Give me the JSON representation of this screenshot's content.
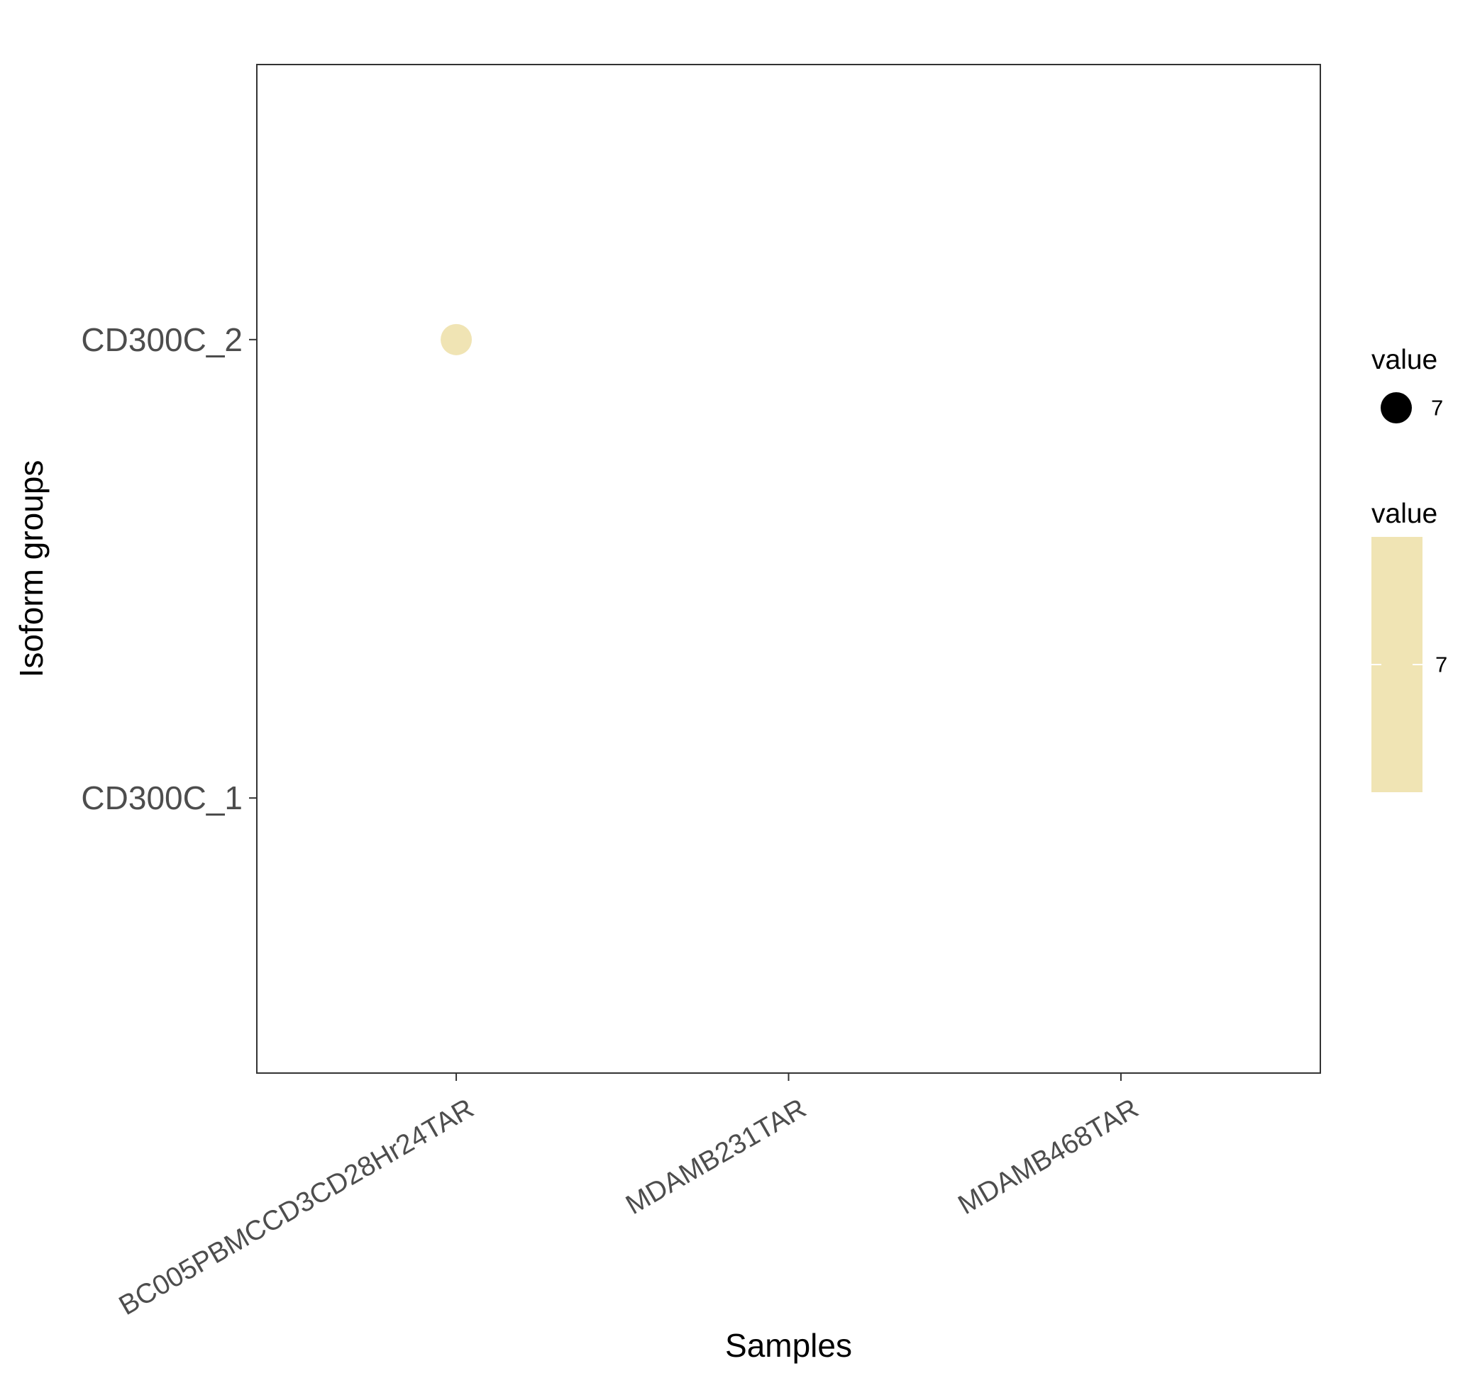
{
  "chart_data": {
    "type": "scatter",
    "title": "",
    "xlabel": "Samples",
    "ylabel": "Isoform groups",
    "x_categories": [
      "BC005PBMCCD3CD28Hr24TAR",
      "MDAMB231TAR",
      "MDAMB468TAR"
    ],
    "y_categories": [
      "CD300C_1",
      "CD300C_2"
    ],
    "points": [
      {
        "x": "BC005PBMCCD3CD28Hr24TAR",
        "y": "CD300C_2",
        "value": 7,
        "color": "#f0e4b4"
      }
    ],
    "grid": false,
    "legend_placement": "right",
    "legends": [
      {
        "kind": "size",
        "title": "value",
        "items": [
          {
            "label": "7",
            "value": 7
          }
        ]
      },
      {
        "kind": "colorbar",
        "title": "value",
        "ticks": [
          {
            "label": "7",
            "value": 7
          }
        ],
        "color": "#f0e4b4"
      }
    ]
  },
  "colors": {
    "point_fill": "#f0e4b4",
    "colorbar_fill": "#f0e4b4",
    "size_key_fill": "#000000",
    "axis_line": "#333333",
    "tick_label": "#4d4d4d"
  }
}
